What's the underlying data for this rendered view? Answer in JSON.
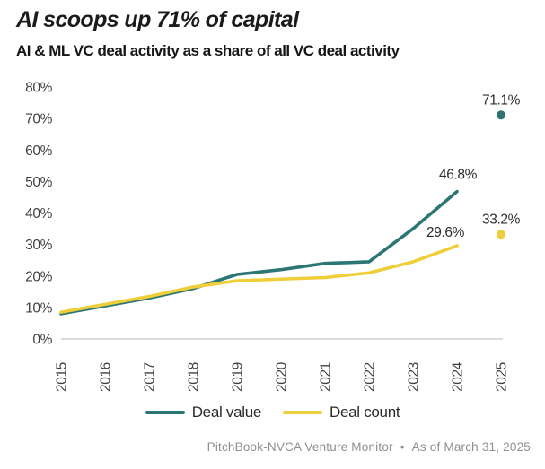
{
  "header": {
    "title": "AI scoops up 71% of capital",
    "subtitle": "AI & ML VC deal activity as a share of all VC deal activity"
  },
  "legend": {
    "items": [
      {
        "label": "Deal value"
      },
      {
        "label": "Deal count"
      }
    ]
  },
  "footer": {
    "source": "PitchBook-NVCA Venture Monitor",
    "separator": "•",
    "as_of": "As of March 31, 2025"
  },
  "colors": {
    "deal_value": "#2b7674",
    "deal_count": "#efcf39",
    "baseline": "#d2d2d2",
    "axis_text": "#404040",
    "label_text": "#2d2d2d",
    "title_text": "#1b1b1b",
    "footer_text": "#8f8f8f",
    "background": "#ffffff"
  },
  "chart_data": {
    "type": "line",
    "title": "AI scoops up 71% of capital",
    "subtitle": "AI & ML VC deal activity as a share of all VC deal activity",
    "x": [
      2015,
      2016,
      2017,
      2018,
      2019,
      2020,
      2021,
      2022,
      2023,
      2024,
      2025
    ],
    "ylim": [
      0,
      80
    ],
    "ytick_values": [
      0,
      10,
      20,
      30,
      40,
      50,
      60,
      70,
      80
    ],
    "ytick_suffix": "%",
    "grid": "baseline-only",
    "legend_position": "bottom-center",
    "series": [
      {
        "key": "deal_value",
        "name": "Deal value",
        "color": "#2b7674",
        "values": [
          8,
          10.5,
          13,
          16,
          20.5,
          22,
          24,
          24.5,
          35,
          46.8,
          71.1
        ],
        "line_through_index": 9,
        "end_label": "46.8%",
        "dot_label": "71.1%"
      },
      {
        "key": "deal_count",
        "name": "Deal count",
        "color": "#efcf39",
        "values": [
          8.5,
          11,
          13.5,
          16.5,
          18.5,
          19,
          19.5,
          21,
          24.5,
          29.6,
          33.2
        ],
        "line_through_index": 9,
        "end_label": "29.6%",
        "dot_label": "33.2%"
      }
    ]
  }
}
